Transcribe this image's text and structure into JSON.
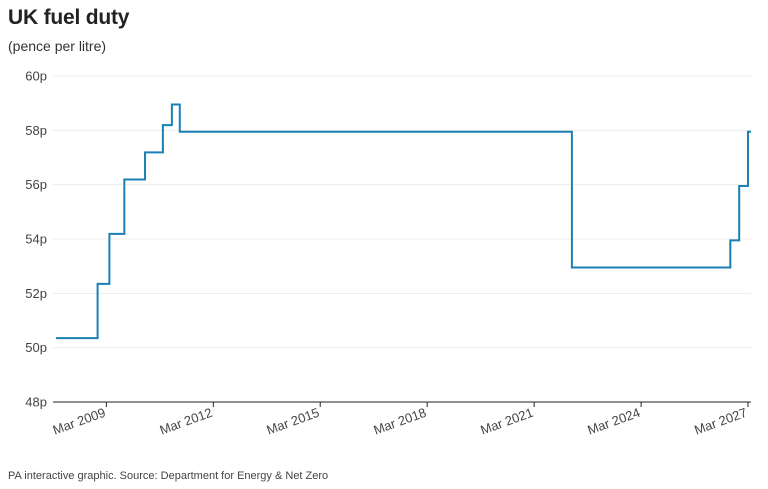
{
  "header": {
    "title": "UK fuel duty",
    "subtitle": "(pence per litre)"
  },
  "footer": {
    "source": "PA interactive graphic. Source: Department for Energy & Net Zero"
  },
  "colors": {
    "line": "#1a7fb5",
    "grid": "#ececec",
    "axis": "#222222"
  },
  "chart_data": {
    "type": "line",
    "step": true,
    "title": "UK fuel duty",
    "subtitle": "(pence per litre)",
    "xlabel": "",
    "ylabel": "",
    "ylim": [
      48,
      60
    ],
    "xlim": [
      "2007-09-01",
      "2027-04-01"
    ],
    "y_ticks": [
      48,
      50,
      52,
      54,
      56,
      58,
      60
    ],
    "y_tick_labels": [
      "48p",
      "50p",
      "52p",
      "54p",
      "56p",
      "58p",
      "60p"
    ],
    "x_ticks": [
      "2009-03-01",
      "2012-03-01",
      "2015-03-01",
      "2018-03-01",
      "2021-03-01",
      "2024-03-01",
      "2027-03-01"
    ],
    "x_tick_labels": [
      "Mar 2009",
      "Mar 2012",
      "Mar 2015",
      "Mar 2018",
      "Mar 2021",
      "Mar 2024",
      "Mar 2027"
    ],
    "grid": true,
    "series": [
      {
        "x": [
          "2007-10-01",
          "2008-12-01",
          "2009-04-01",
          "2009-09-01",
          "2010-04-01",
          "2010-10-01",
          "2011-01-01",
          "2011-03-23",
          "2022-03-23",
          "2026-09-01",
          "2026-12-01",
          "2027-03-01",
          "2027-04-01"
        ],
        "y": [
          50.35,
          52.35,
          54.19,
          56.19,
          57.19,
          58.19,
          58.95,
          57.95,
          52.95,
          53.95,
          55.95,
          57.95,
          57.95
        ]
      }
    ]
  }
}
